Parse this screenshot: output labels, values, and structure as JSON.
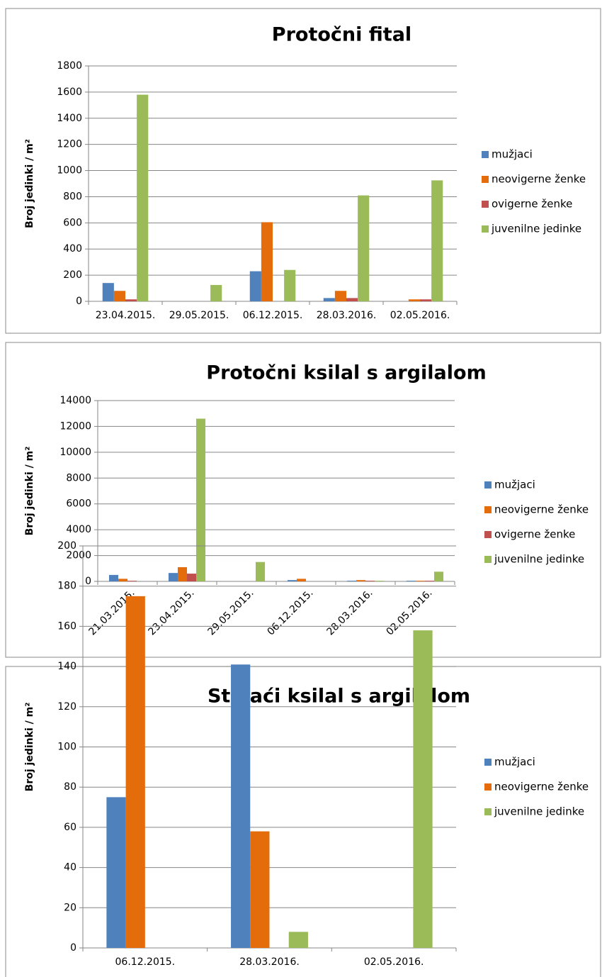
{
  "chart_data": [
    {
      "type": "bar",
      "title": "Protočni fital",
      "y_label": "Broj jedinki / m²",
      "categories": [
        "23.04.2015.",
        "29.05.2015.",
        "06.12.2015.",
        "28.03.2016.",
        "02.05.2016."
      ],
      "series": [
        {
          "name": "mužjaci",
          "color": "#4f81bd",
          "values": [
            140,
            0,
            230,
            25,
            0
          ]
        },
        {
          "name": "neovigerne ženke",
          "color": "#e46c0a",
          "values": [
            80,
            0,
            605,
            80,
            15
          ]
        },
        {
          "name": "ovigerne ženke",
          "color": "#c0504d",
          "values": [
            15,
            0,
            0,
            25,
            15
          ]
        },
        {
          "name": "juvenilne jedinke",
          "color": "#9bbb59",
          "values": [
            1580,
            125,
            240,
            810,
            925
          ]
        }
      ],
      "ylim": [
        0,
        1800
      ],
      "yticks": [
        0,
        200,
        400,
        600,
        800,
        1000,
        1200,
        1400,
        1600,
        1800
      ],
      "grid": true,
      "legend": "right"
    },
    {
      "type": "bar",
      "title": "Protočni ksilal s argilalom",
      "y_label": "Broj jedinki / m²",
      "categories": [
        "21.03.2015.",
        "23.04.2015.",
        "29.05.2015.",
        "06.12.2015.",
        "28.03.2016.",
        "02.05.2016."
      ],
      "series": [
        {
          "name": "mužjaci",
          "color": "#4f81bd",
          "values": [
            500,
            650,
            0,
            100,
            50,
            50
          ]
        },
        {
          "name": "neovigerne ženke",
          "color": "#e46c0a",
          "values": [
            200,
            1100,
            0,
            200,
            100,
            50
          ]
        },
        {
          "name": "ovigerne ženke",
          "color": "#c0504d",
          "values": [
            50,
            600,
            0,
            0,
            50,
            50
          ]
        },
        {
          "name": "juvenilne jedinke",
          "color": "#9bbb59",
          "values": [
            0,
            12600,
            1500,
            0,
            50,
            750
          ]
        }
      ],
      "ylim": [
        0,
        14000
      ],
      "yticks": [
        0,
        2000,
        4000,
        6000,
        8000,
        10000,
        12000,
        14000
      ],
      "grid": true,
      "legend": "right"
    },
    {
      "type": "bar",
      "title": "Stajaći ksilal s argilalom",
      "y_label": "Broj jedinki / m²",
      "categories": [
        "06.12.2015.",
        "28.03.2016.",
        "02.05.2016."
      ],
      "series": [
        {
          "name": "mužjaci",
          "color": "#4f81bd",
          "values": [
            75,
            141,
            0
          ]
        },
        {
          "name": "neovigerne ženke",
          "color": "#e46c0a",
          "values": [
            175,
            58,
            0
          ]
        },
        {
          "name": "juvenilne jedinke",
          "color": "#9bbb59",
          "values": [
            0,
            8,
            158
          ]
        }
      ],
      "ylim": [
        0,
        200
      ],
      "yticks": [
        0,
        20,
        40,
        60,
        80,
        100,
        120,
        140,
        160,
        180,
        200
      ],
      "grid": true,
      "legend": "right"
    }
  ]
}
